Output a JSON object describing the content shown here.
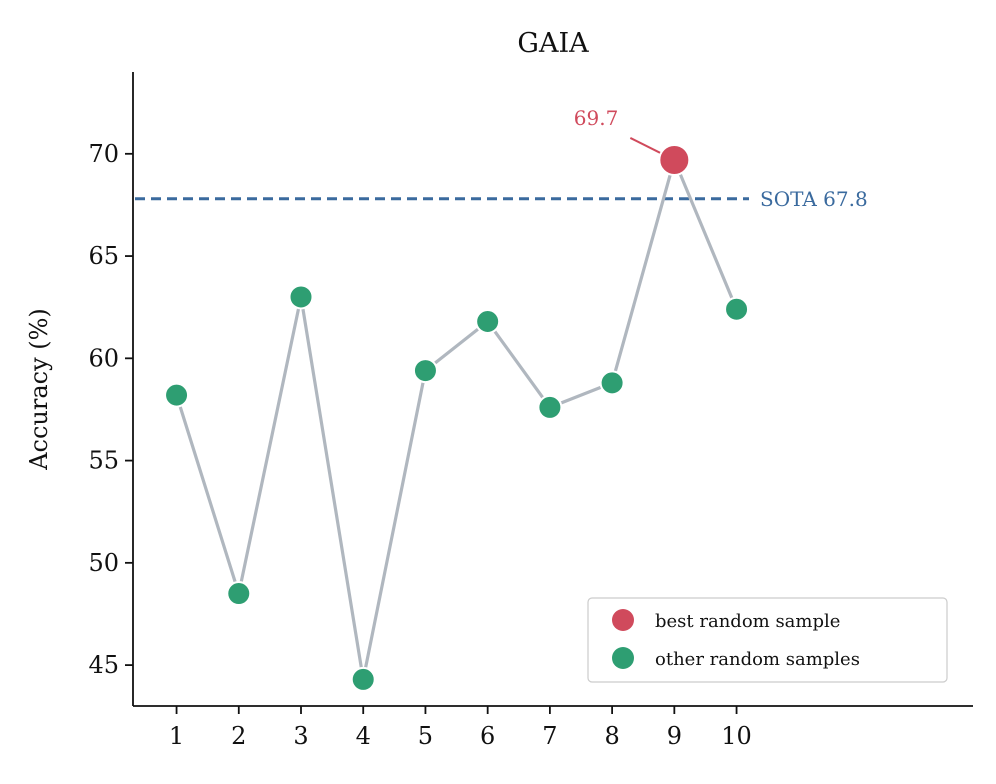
{
  "chart_data": {
    "type": "line",
    "title": "GAIA",
    "xlabel": "",
    "ylabel": "Accuracy (%)",
    "x": [
      1,
      2,
      3,
      4,
      5,
      6,
      7,
      8,
      9,
      10
    ],
    "y": [
      58.2,
      48.5,
      63.0,
      44.3,
      59.4,
      61.8,
      57.6,
      58.8,
      69.7,
      62.4
    ],
    "best_index": 8,
    "best_label": "69.7",
    "xticks": [
      1,
      2,
      3,
      4,
      5,
      6,
      7,
      8,
      9,
      10
    ],
    "yticks": [
      45,
      50,
      55,
      60,
      65,
      70
    ],
    "xlim": [
      0.3,
      13.8
    ],
    "ylim": [
      43.0,
      74.0
    ],
    "reference_line": {
      "label": "SOTA  67.8",
      "value": 67.8,
      "color": "#3a6a9e"
    },
    "legend": {
      "placement": "lower-right",
      "entries": [
        {
          "label": "best random sample",
          "color": "#d04a5c"
        },
        {
          "label": "other random samples",
          "color": "#2e9e72"
        }
      ]
    },
    "colors": {
      "line": "#b0b7bf",
      "best": "#d04a5c",
      "other": "#2e9e72",
      "reference": "#3a6a9e"
    },
    "grid": false
  }
}
